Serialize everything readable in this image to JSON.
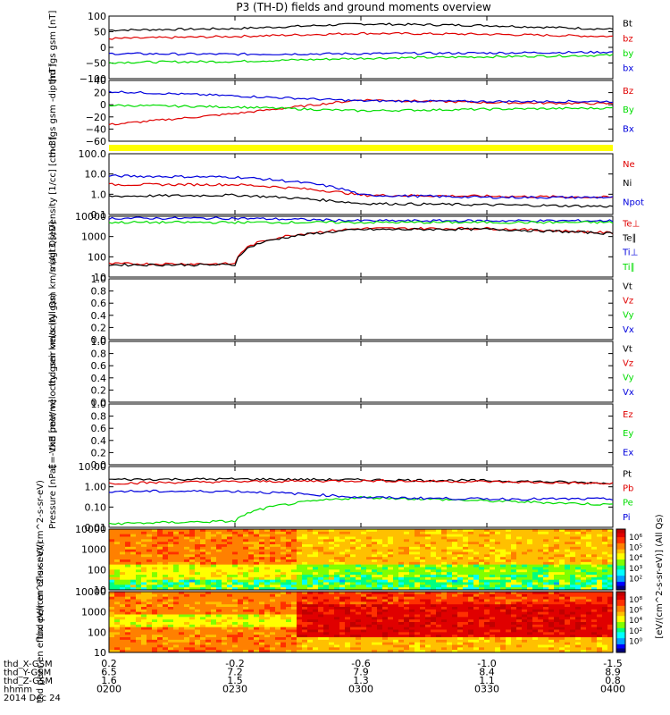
{
  "title": "P3 (TH-D) fields and ground moments overview",
  "colors": {
    "black": "#000000",
    "red": "#e00000",
    "green": "#00dd00",
    "blue": "#0000dd",
    "yellow": "#ffff00"
  },
  "x_axis": {
    "rows": [
      {
        "label": "thd_X-GSM",
        "values": [
          "0.2",
          "-0.2",
          "-0.6",
          "-1.0",
          "-1.5"
        ]
      },
      {
        "label": "thd_Y-GSM",
        "values": [
          "6.5",
          "7.2",
          "7.9",
          "8.4",
          "8.9"
        ]
      },
      {
        "label": "thd_Z-GSM",
        "values": [
          "1.6",
          "1.5",
          "1.3",
          "1.1",
          "0.8"
        ]
      },
      {
        "label": "hhmm",
        "values": [
          "0200",
          "0230",
          "0300",
          "0330",
          "0400"
        ]
      }
    ],
    "date": "2014 Dec 24"
  },
  "chart_data": [
    {
      "type": "line",
      "panel": "fgs_gsm",
      "ylabel": "thd fgs gsm [nT]",
      "ylim": [
        -100,
        100
      ],
      "yticks": [
        "100",
        "50",
        "0",
        "−50",
        "−100"
      ],
      "legend": [
        {
          "name": "Bt",
          "color": "black"
        },
        {
          "name": "bz",
          "color": "red"
        },
        {
          "name": "by",
          "color": "green"
        },
        {
          "name": "bx",
          "color": "blue"
        }
      ],
      "x": [
        "0200",
        "0230",
        "0300",
        "0330",
        "0400"
      ],
      "series": [
        {
          "name": "Bt",
          "values": [
            55,
            60,
            75,
            70,
            58
          ]
        },
        {
          "name": "bz",
          "values": [
            28,
            35,
            45,
            42,
            35
          ]
        },
        {
          "name": "by",
          "values": [
            -48,
            -45,
            -35,
            -30,
            -25
          ]
        },
        {
          "name": "bx",
          "values": [
            -20,
            -22,
            -20,
            -18,
            -15
          ]
        }
      ]
    },
    {
      "type": "line",
      "panel": "fgs_dsl",
      "ylabel": "thd fgs gsm -dip [nT]",
      "ylim": [
        -70,
        40
      ],
      "yticks": [
        "40",
        "20",
        "0",
        "−20",
        "−40",
        "−60"
      ],
      "legend": [
        {
          "name": "Bz",
          "color": "red"
        },
        {
          "name": "By",
          "color": "green"
        },
        {
          "name": "Bx",
          "color": "blue"
        }
      ],
      "x": [
        "0200",
        "0230",
        "0300",
        "0330",
        "0400"
      ],
      "series": [
        {
          "name": "Bz",
          "values": [
            -40,
            -20,
            5,
            0,
            -2
          ]
        },
        {
          "name": "By",
          "values": [
            -5,
            -8,
            -15,
            -12,
            -10
          ]
        },
        {
          "name": "Bx",
          "values": [
            20,
            12,
            3,
            2,
            2
          ]
        }
      ]
    },
    {
      "type": "line",
      "panel": "density",
      "ylabel": "Density [1/cc] [cm-3]",
      "yscale": "log",
      "ylim": [
        0.1,
        100
      ],
      "yticks": [
        "100.0",
        "10.0",
        "1.0",
        "0.1"
      ],
      "legend": [
        {
          "name": "Ne",
          "color": "red"
        },
        {
          "name": "Ni",
          "color": "black"
        },
        {
          "name": "Npot",
          "color": "blue"
        }
      ],
      "x": [
        "0200",
        "0230",
        "0300",
        "0330",
        "0400"
      ],
      "series": [
        {
          "name": "Ne",
          "values": [
            3,
            3,
            0.9,
            0.8,
            0.7
          ]
        },
        {
          "name": "Ni",
          "values": [
            0.8,
            0.9,
            0.35,
            0.3,
            0.25
          ]
        },
        {
          "name": "Npot",
          "values": [
            8,
            7,
            0.9,
            0.7,
            0.7
          ]
        }
      ]
    },
    {
      "type": "line",
      "panel": "temperature",
      "ylabel": "magt3 [eV]",
      "yscale": "log",
      "ylim": [
        10,
        10000
      ],
      "yticks": [
        "10000",
        "1000",
        "100",
        "10"
      ],
      "legend": [
        {
          "name": "Te⊥",
          "color": "red"
        },
        {
          "name": "Te∥",
          "color": "black"
        },
        {
          "name": "Ti⊥",
          "color": "blue"
        },
        {
          "name": "Ti∥",
          "color": "green"
        }
      ],
      "x": [
        "0200",
        "0230",
        "0300",
        "0330",
        "0400"
      ],
      "series": [
        {
          "name": "Te⊥",
          "values": [
            45,
            45,
            2500,
            2500,
            1500
          ]
        },
        {
          "name": "Te∥",
          "values": [
            40,
            40,
            2200,
            2300,
            1400
          ]
        },
        {
          "name": "Ti⊥",
          "values": [
            8000,
            8000,
            6000,
            6000,
            6000
          ]
        },
        {
          "name": "Ti∥",
          "values": [
            5000,
            5000,
            5000,
            5000,
            5000
          ]
        }
      ]
    },
    {
      "type": "line",
      "panel": "peir_velocity",
      "ylabel": "thd peir velocity gsm km/s (All Qs)",
      "ylim": [
        0,
        1
      ],
      "yticks": [
        "1.0",
        "0.8",
        "0.6",
        "0.4",
        "0.2",
        "0.0"
      ],
      "legend": [
        {
          "name": "Vt",
          "color": "black"
        },
        {
          "name": "Vz",
          "color": "red"
        },
        {
          "name": "Vy",
          "color": "green"
        },
        {
          "name": "Vx",
          "color": "blue"
        }
      ],
      "series": []
    },
    {
      "type": "line",
      "panel": "peer_velocity",
      "ylabel": "thd peer velocity gsm km/s (All Qs)",
      "ylim": [
        0,
        1
      ],
      "yticks": [
        "1.0",
        "0.8",
        "0.6",
        "0.4",
        "0.2",
        "0.0"
      ],
      "legend": [
        {
          "name": "Vt",
          "color": "black"
        },
        {
          "name": "Vz",
          "color": "red"
        },
        {
          "name": "Vy",
          "color": "green"
        },
        {
          "name": "Vx",
          "color": "blue"
        }
      ],
      "series": []
    },
    {
      "type": "line",
      "panel": "efield",
      "ylabel": "E=-VxB [mV/m]",
      "ylim": [
        0,
        1
      ],
      "yticks": [
        "1.0",
        "0.8",
        "0.6",
        "0.4",
        "0.2",
        "0.0"
      ],
      "legend": [
        {
          "name": "Ez",
          "color": "red"
        },
        {
          "name": "Ey",
          "color": "green"
        },
        {
          "name": "Ex",
          "color": "blue"
        }
      ],
      "series": []
    },
    {
      "type": "line",
      "panel": "pressure",
      "ylabel": "Pressure [nPa]",
      "yscale": "log",
      "ylim": [
        0.01,
        10
      ],
      "yticks": [
        "10.00",
        "1.00",
        "0.10",
        "0.01"
      ],
      "legend": [
        {
          "name": "Pt",
          "color": "black"
        },
        {
          "name": "Pb",
          "color": "red"
        },
        {
          "name": "Pe",
          "color": "green"
        },
        {
          "name": "Pi",
          "color": "blue"
        }
      ],
      "x": [
        "0200",
        "0230",
        "0300",
        "0330",
        "0400"
      ],
      "series": [
        {
          "name": "Pt",
          "values": [
            2.3,
            2.4,
            2.2,
            2.0,
            1.5
          ]
        },
        {
          "name": "Pb",
          "values": [
            1.5,
            1.8,
            2.0,
            1.8,
            1.4
          ]
        },
        {
          "name": "Pe",
          "values": [
            0.015,
            0.02,
            0.3,
            0.2,
            0.13
          ]
        },
        {
          "name": "Pi",
          "values": [
            0.6,
            0.6,
            0.3,
            0.25,
            0.25
          ]
        }
      ]
    },
    {
      "type": "heatmap",
      "panel": "peir_eflux",
      "ylabel": "thd peir en eflux eV/(cm^2-s-sr-eV)",
      "yscale": "log",
      "ylim": [
        10,
        10000
      ],
      "yticks": [
        "10000",
        "1000",
        "100",
        "10"
      ],
      "colorbar": {
        "labels": [
          "10⁶",
          "10⁵",
          "10⁴",
          "10³",
          "10²"
        ]
      }
    },
    {
      "type": "heatmap",
      "panel": "peer_eflux",
      "ylabel": "thd peer en eflux eV/(cm^2-s-sr-eV)",
      "yscale": "log",
      "ylim": [
        10,
        10000
      ],
      "yticks": [
        "10000",
        "1000",
        "100",
        "10"
      ],
      "colorbar": {
        "labels": [
          "10⁸",
          "10⁶",
          "10⁴",
          "10²",
          "10⁰"
        ]
      }
    }
  ],
  "colorbar_title": "[eV/(cm^2-s-sr-eV)] (All Qs)"
}
